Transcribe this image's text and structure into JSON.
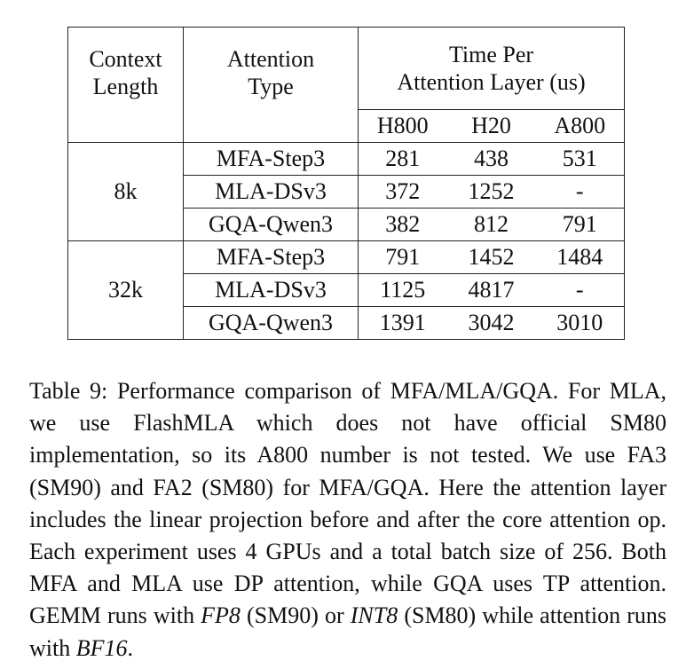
{
  "table": {
    "headers": {
      "context_length_line1": "Context",
      "context_length_line2": "Length",
      "attention_type_line1": "Attention",
      "attention_type_line2": "Type",
      "time_line1": "Time Per",
      "time_line2": "Attention Layer (us)",
      "gpus": [
        "H800",
        "H20",
        "A800"
      ]
    },
    "groups": [
      {
        "context": "8k",
        "rows": [
          {
            "type": "MFA-Step3",
            "values": [
              "281",
              "438",
              "531"
            ]
          },
          {
            "type": "MLA-DSv3",
            "values": [
              "372",
              "1252",
              "-"
            ]
          },
          {
            "type": "GQA-Qwen3",
            "values": [
              "382",
              "812",
              "791"
            ]
          }
        ]
      },
      {
        "context": "32k",
        "rows": [
          {
            "type": "MFA-Step3",
            "values": [
              "791",
              "1452",
              "1484"
            ]
          },
          {
            "type": "MLA-DSv3",
            "values": [
              "1125",
              "4817",
              "-"
            ]
          },
          {
            "type": "GQA-Qwen3",
            "values": [
              "1391",
              "3042",
              "3010"
            ]
          }
        ]
      }
    ]
  },
  "caption": {
    "part1": "Table 9: Performance comparison of MFA/MLA/GQA. For MLA, we use FlashMLA which does not have official SM80 implementation, so its A800 number is not tested. We use FA3 (SM90) and FA2 (SM80) for MFA/GQA. Here the attention layer includes the linear projection before and after the core attention op. Each experiment uses 4 GPUs and a total batch size of 256. Both MFA and MLA use DP attention, while GQA uses TP attention. GEMM runs with ",
    "fp8": "FP8",
    "part2": " (SM90) or ",
    "int8": "INT8",
    "part3": " (SM80) while attention runs with ",
    "bf16": "BF16",
    "part4": "."
  }
}
